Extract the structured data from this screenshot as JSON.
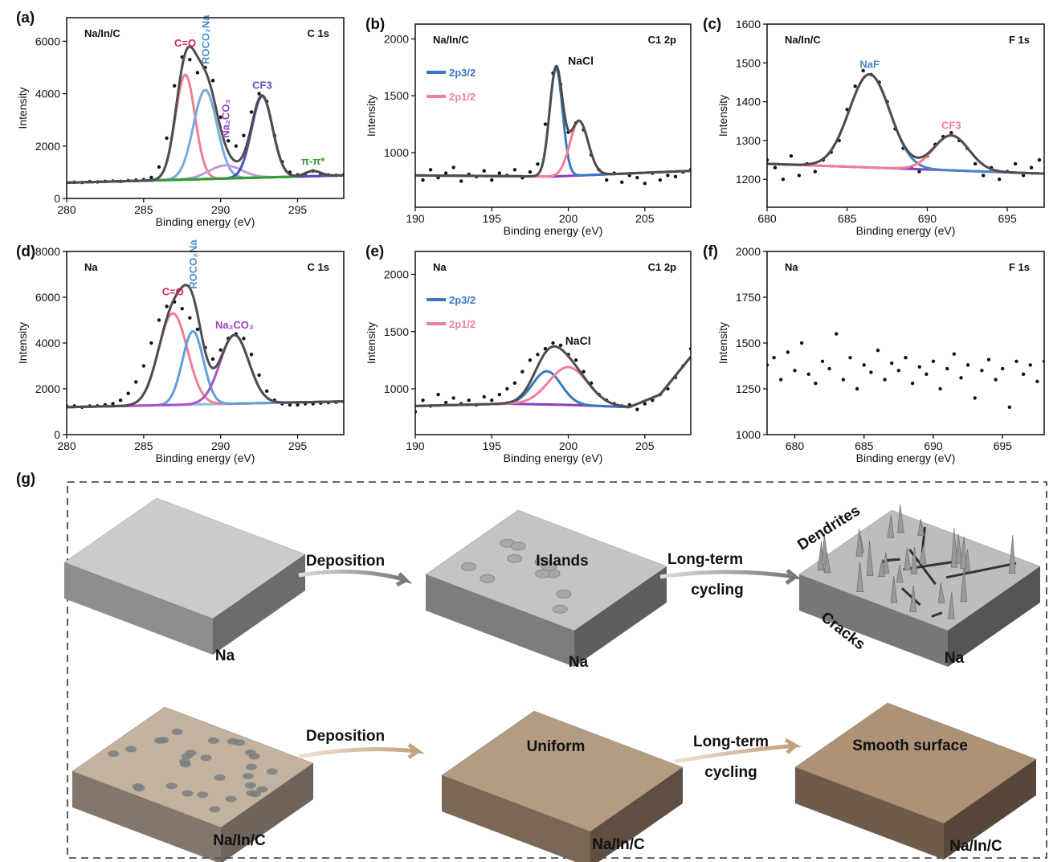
{
  "chart_data": [
    {
      "type": "xps",
      "label": "(a)",
      "sample": "Na/In/C",
      "region": "C 1s",
      "xlabel": "Binding energy (eV)",
      "ylabel": "Intensity",
      "xlim": [
        280,
        298
      ],
      "ylim": [
        0,
        6900
      ],
      "xticks": [
        280,
        285,
        290,
        295
      ],
      "yticks": [
        0,
        2000,
        4000,
        6000
      ],
      "marker_color": "#111111",
      "envelope_color": "#4d4d4d",
      "x": [
        280,
        280.5,
        281,
        281.5,
        282,
        282.5,
        283,
        283.5,
        284,
        284.5,
        285,
        285.5,
        286,
        286.5,
        287,
        287.5,
        288,
        288.5,
        289,
        289.5,
        290,
        290.5,
        291,
        291.5,
        292,
        292.5,
        293,
        293.5,
        294,
        294.5,
        295,
        295.5,
        296,
        296.5,
        297,
        297.5,
        298
      ],
      "values": [
        600,
        620,
        610,
        640,
        630,
        650,
        660,
        650,
        680,
        700,
        720,
        800,
        1200,
        2300,
        4300,
        5400,
        5300,
        4800,
        5000,
        4500,
        3100,
        2200,
        2000,
        2400,
        3300,
        4000,
        3700,
        2400,
        1400,
        1000,
        900,
        950,
        1050,
        950,
        900,
        880,
        900
      ],
      "background": {
        "color": "#3a9a3a",
        "x": [
          280,
          298
        ],
        "values": [
          600,
          880
        ]
      },
      "peaks": [
        {
          "name": "C=O",
          "color": "#f08090",
          "label_color": "#d6245a",
          "center": 287.7,
          "height": 4000,
          "fwhm": 1.5
        },
        {
          "name": "ROCO₂Na",
          "color": "#78acd8",
          "label_color": "#4f8fc9",
          "label_vertical": true,
          "center": 289.0,
          "height": 3400,
          "fwhm": 1.8
        },
        {
          "name": "Na₂CO₃",
          "color": "#c09ae0",
          "label_color": "#9b3fc0",
          "label_vertical": true,
          "center": 290.3,
          "height": 500,
          "fwhm": 2.5
        },
        {
          "name": "CF3",
          "color": "#5050b8",
          "label_color": "#5050b8",
          "center": 292.7,
          "height": 3100,
          "fwhm": 1.6
        },
        {
          "name": "π-π*",
          "color": "#2f9e2f",
          "label_color": "#2f9e2f",
          "center": 296.0,
          "height": 200,
          "fwhm": 1.2
        }
      ]
    },
    {
      "type": "xps",
      "label": "(b)",
      "sample": "Na/In/C",
      "region": "C1 2p",
      "xlabel": "Binding energy (eV)",
      "ylabel": "Intensity",
      "xlim": [
        190,
        208
      ],
      "ylim": [
        520,
        2130
      ],
      "xticks": [
        190,
        195,
        200,
        205
      ],
      "yticks": [
        1000,
        1500,
        2000
      ],
      "marker_color": "#111111",
      "envelope_color": "#4d4d4d",
      "legend": "upper left",
      "annotation": "NaCl",
      "x": [
        190,
        190.5,
        191,
        191.5,
        192,
        192.5,
        193,
        193.5,
        194,
        194.5,
        195,
        195.5,
        196,
        196.5,
        197,
        197.5,
        198,
        198.5,
        199,
        199.5,
        200,
        200.5,
        201,
        201.5,
        202,
        202.5,
        203,
        203.5,
        204,
        204.5,
        205,
        205.5,
        206,
        206.5,
        207,
        207.5,
        208
      ],
      "values": [
        800,
        760,
        850,
        780,
        820,
        870,
        750,
        810,
        790,
        840,
        760,
        820,
        800,
        850,
        780,
        830,
        900,
        1250,
        1700,
        1600,
        1180,
        1260,
        1200,
        980,
        850,
        760,
        820,
        740,
        800,
        780,
        730,
        820,
        760,
        800,
        790,
        830,
        850
      ],
      "background": {
        "color": "#8a3fc0",
        "x": [
          190,
          199,
          208
        ],
        "values": [
          800,
          790,
          840
        ]
      },
      "peaks": [
        {
          "name": "2p3/2",
          "color": "#3a78c2",
          "center": 199.2,
          "height": 950,
          "fwhm": 1.0
        },
        {
          "name": "2p1/2",
          "color": "#f27f9a",
          "center": 200.7,
          "height": 480,
          "fwhm": 1.4
        }
      ]
    },
    {
      "type": "xps",
      "label": "(c)",
      "sample": "Na/In/C",
      "region": "F 1s",
      "xlabel": "Binding energy (eV)",
      "ylabel": "Intensity",
      "xlim": [
        680,
        697.3
      ],
      "ylim": [
        1128,
        1600
      ],
      "xticks": [
        680,
        685,
        690,
        695
      ],
      "yticks": [
        1200,
        1300,
        1400,
        1500,
        1600
      ],
      "marker_color": "#111111",
      "envelope_color": "#4d4d4d",
      "x": [
        680,
        680.5,
        681,
        681.5,
        682,
        682.5,
        683,
        683.5,
        684,
        684.5,
        685,
        685.5,
        686,
        686.5,
        687,
        687.5,
        688,
        688.5,
        689,
        689.5,
        690,
        690.5,
        691,
        691.5,
        692,
        692.5,
        693,
        693.5,
        694,
        694.5,
        695,
        695.5,
        696,
        696.5,
        697
      ],
      "values": [
        1250,
        1230,
        1200,
        1260,
        1210,
        1240,
        1220,
        1250,
        1270,
        1300,
        1380,
        1440,
        1480,
        1470,
        1450,
        1400,
        1330,
        1280,
        1230,
        1220,
        1260,
        1290,
        1310,
        1320,
        1300,
        1280,
        1240,
        1210,
        1230,
        1200,
        1220,
        1240,
        1210,
        1230,
        1250
      ],
      "background": {
        "color": "#8a3fc0",
        "x": [
          680,
          697
        ],
        "values": [
          1240,
          1215
        ]
      },
      "peaks": [
        {
          "name": "NaF",
          "color": "#4a86c5",
          "label_color": "#4a86c5",
          "center": 686.4,
          "height": 240,
          "fwhm": 3.0
        },
        {
          "name": "CF3",
          "color": "#f07e94",
          "label_color": "#f07e94",
          "center": 691.5,
          "height": 90,
          "fwhm": 2.6
        }
      ]
    },
    {
      "type": "xps",
      "label": "(d)",
      "sample": "Na",
      "region": "C 1s",
      "xlabel": "Binding energy (eV)",
      "ylabel": "Intensity",
      "xlim": [
        280,
        298
      ],
      "ylim": [
        0,
        8000
      ],
      "xticks": [
        280,
        285,
        290,
        295
      ],
      "yticks": [
        0,
        2000,
        4000,
        6000,
        8000
      ],
      "marker_color": "#111111",
      "envelope_color": "#4d4d4d",
      "x": [
        280,
        280.5,
        281,
        281.5,
        282,
        282.5,
        283,
        283.5,
        284,
        284.5,
        285,
        285.5,
        286,
        286.5,
        287,
        287.5,
        288,
        288.5,
        289,
        289.5,
        290,
        290.5,
        291,
        291.5,
        292,
        292.5,
        293,
        293.5,
        294,
        294.5,
        295,
        295.5,
        296,
        296.5,
        297,
        297.5,
        298
      ],
      "values": [
        1250,
        1250,
        1200,
        1250,
        1250,
        1300,
        1350,
        1500,
        1800,
        2300,
        3000,
        4000,
        5000,
        5600,
        5800,
        5500,
        5100,
        4600,
        3800,
        3300,
        3700,
        4200,
        4400,
        4200,
        3500,
        2600,
        1900,
        1500,
        1350,
        1300,
        1300,
        1350,
        1350,
        1380,
        1400,
        1420,
        1450
      ],
      "background": {
        "color": "#8fbfe0",
        "x": [
          280,
          298
        ],
        "values": [
          1200,
          1450
        ]
      },
      "peaks": [
        {
          "name": "C=O",
          "color": "#f08090",
          "label_color": "#d6245a",
          "center": 286.9,
          "height": 4000,
          "fwhm": 2.2
        },
        {
          "name": "ROCO₂Na",
          "color": "#5fa0d8",
          "label_color": "#4f8fc9",
          "label_vertical": true,
          "center": 288.2,
          "height": 3200,
          "fwhm": 1.6
        },
        {
          "name": "Na₂CO₃",
          "color": "#a855c9",
          "label_color": "#9b3fc0",
          "center": 290.9,
          "height": 3000,
          "fwhm": 2.2
        }
      ]
    },
    {
      "type": "xps",
      "label": "(e)",
      "sample": "Na",
      "region": "C1 2p",
      "xlabel": "Binding energy (eV)",
      "ylabel": "Intensity",
      "xlim": [
        190,
        208
      ],
      "ylim": [
        600,
        2200
      ],
      "xticks": [
        190,
        195,
        200,
        205
      ],
      "yticks": [
        1000,
        1500,
        2000
      ],
      "marker_color": "#111111",
      "envelope_color": "#4d4d4d",
      "legend": "upper left",
      "annotation": "NaCl",
      "x": [
        190,
        190.5,
        191,
        191.5,
        192,
        192.5,
        193,
        193.5,
        194,
        194.5,
        195,
        195.5,
        196,
        196.5,
        197,
        197.5,
        198,
        198.5,
        199,
        199.5,
        200,
        200.5,
        201,
        201.5,
        202,
        202.5,
        203,
        203.5,
        204,
        204.5,
        205,
        205.5,
        206,
        206.5,
        207,
        207.5,
        208
      ],
      "values": [
        800,
        900,
        850,
        950,
        880,
        920,
        870,
        900,
        860,
        930,
        900,
        950,
        1000,
        1050,
        1150,
        1250,
        1300,
        1350,
        1400,
        1380,
        1300,
        1250,
        1150,
        1050,
        950,
        900,
        870,
        850,
        860,
        820,
        870,
        900,
        950,
        1000,
        1100,
        1200,
        1350
      ],
      "background": {
        "color": "#8a3fc0",
        "x": [
          190,
          196,
          200,
          204,
          206,
          208
        ],
        "values": [
          850,
          870,
          860,
          840,
          950,
          1280
        ]
      },
      "peaks": [
        {
          "name": "2p3/2",
          "color": "#3a78c2",
          "center": 198.6,
          "height": 290,
          "fwhm": 2.2
        },
        {
          "name": "2p1/2",
          "color": "#f27f9a",
          "center": 200.0,
          "height": 330,
          "fwhm": 3.0
        }
      ]
    },
    {
      "type": "xps",
      "label": "(f)",
      "sample": "Na",
      "region": "F 1s",
      "xlabel": "Binding energy (eV)",
      "ylabel": "Intensity",
      "xlim": [
        678,
        698
      ],
      "ylim": [
        1000,
        2000
      ],
      "xticks": [
        680,
        685,
        690,
        695
      ],
      "yticks": [
        1000,
        1250,
        1500,
        1750,
        2000
      ],
      "marker_color": "#111111",
      "x": [
        678,
        678.5,
        679,
        679.5,
        680,
        680.5,
        681,
        681.5,
        682,
        682.5,
        683,
        683.5,
        684,
        684.5,
        685,
        685.5,
        686,
        686.5,
        687,
        687.5,
        688,
        688.5,
        689,
        689.5,
        690,
        690.5,
        691,
        691.5,
        692,
        692.5,
        693,
        693.5,
        694,
        694.5,
        695,
        695.5,
        696,
        696.5,
        697,
        697.5,
        698
      ],
      "values": [
        1380,
        1420,
        1300,
        1450,
        1350,
        1500,
        1330,
        1280,
        1400,
        1360,
        1550,
        1300,
        1420,
        1250,
        1380,
        1340,
        1460,
        1300,
        1390,
        1350,
        1420,
        1280,
        1370,
        1330,
        1400,
        1250,
        1360,
        1440,
        1310,
        1380,
        1200,
        1350,
        1410,
        1300,
        1360,
        1150,
        1400,
        1330,
        1380,
        1290,
        1400
      ]
    }
  ],
  "diagram": {
    "label": "(g)",
    "rows": [
      {
        "slabs": [
          "Na",
          "Na",
          "Na"
        ],
        "islands": "Islands",
        "dendrites": "Dendrites",
        "cracks": "Cracks",
        "arrows": [
          [
            "Deposition"
          ],
          [
            "Long-term",
            "cycling"
          ]
        ]
      },
      {
        "slabs": [
          "Na/In/C",
          "Na/In/C",
          "Na/In/C"
        ],
        "uniform": "Uniform",
        "smooth": "Smooth surface",
        "arrows": [
          [
            "Deposition"
          ],
          [
            "Long-term",
            "cycling"
          ]
        ]
      }
    ]
  }
}
